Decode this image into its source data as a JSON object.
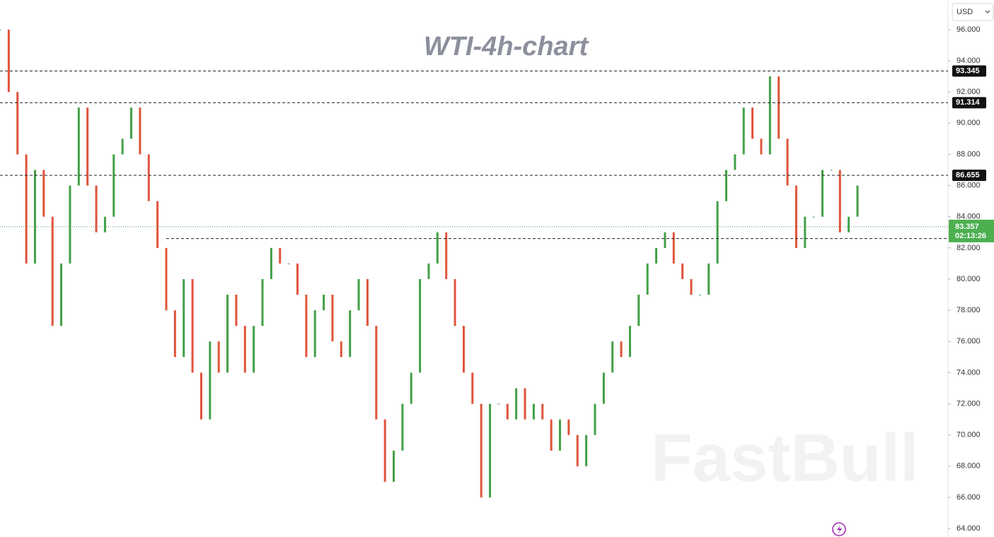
{
  "chart_data": {
    "type": "candlestick",
    "title": "WTI-4h-chart",
    "watermark": "FastBull",
    "currency": "USD",
    "up_color": "#43a047",
    "down_color": "#e0533b",
    "values": [
      96,
      92,
      88,
      81,
      87,
      84,
      77,
      81,
      86,
      91,
      86,
      83,
      84,
      88,
      89,
      91,
      88,
      85,
      82,
      78,
      75,
      80,
      74,
      71,
      76,
      74,
      79,
      77,
      74,
      77,
      80,
      82,
      81,
      81,
      79,
      75,
      78,
      79,
      76,
      75,
      78,
      80,
      77,
      71,
      67,
      69,
      72,
      74,
      80,
      81,
      83,
      80,
      77,
      74,
      72,
      66,
      72,
      72,
      71,
      73,
      71,
      72,
      71,
      69,
      71,
      70,
      68,
      70,
      72,
      74,
      76,
      75,
      77,
      79,
      81,
      82,
      83,
      81,
      80,
      79,
      79,
      81,
      85,
      87,
      88,
      91,
      89,
      88,
      93,
      89,
      86,
      82,
      84,
      84,
      87,
      87,
      83,
      84,
      86
    ],
    "ylim": [
      63.46,
      97.9
    ],
    "yticks": [
      {
        "value": 64,
        "label": "64.000"
      },
      {
        "value": 66,
        "label": "66.000"
      },
      {
        "value": 68,
        "label": "68.000"
      },
      {
        "value": 70,
        "label": "70.000"
      },
      {
        "value": 72,
        "label": "72.000"
      },
      {
        "value": 74,
        "label": "74.000"
      },
      {
        "value": 76,
        "label": "76.000"
      },
      {
        "value": 78,
        "label": "78.000"
      },
      {
        "value": 80,
        "label": "80.000"
      },
      {
        "value": 82,
        "label": "82.000"
      },
      {
        "value": 84,
        "label": "84.000"
      },
      {
        "value": 86,
        "label": "86.000"
      },
      {
        "value": 88,
        "label": "88.000"
      },
      {
        "value": 90,
        "label": "90.000"
      },
      {
        "value": 92,
        "label": "92.000"
      },
      {
        "value": 94,
        "label": "94.000"
      },
      {
        "value": 96,
        "label": "96.000"
      }
    ],
    "levels": [
      93.345,
      91.314,
      86.655
    ],
    "support_level": 82.6,
    "current_price": 83.357,
    "countdown": "02:13:26",
    "grid": false
  }
}
